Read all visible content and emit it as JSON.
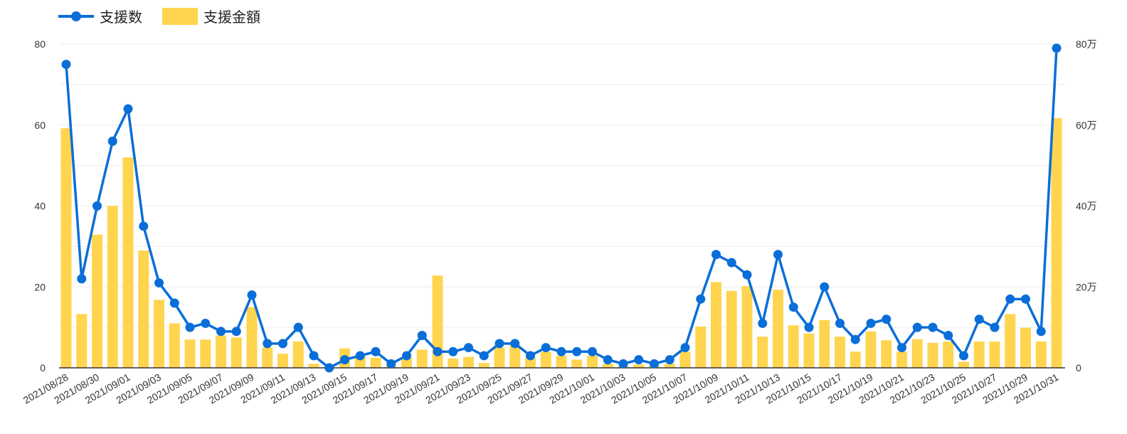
{
  "chart_data": {
    "type": "bar+line",
    "legend_position": "top-left",
    "grid": true,
    "colors": {
      "line": "#0a6ed8",
      "bar": "#ffd54f"
    },
    "x": [
      "2021/08/28",
      "2021/08/29",
      "2021/08/30",
      "2021/08/31",
      "2021/09/01",
      "2021/09/02",
      "2021/09/03",
      "2021/09/04",
      "2021/09/05",
      "2021/09/06",
      "2021/09/07",
      "2021/09/08",
      "2021/09/09",
      "2021/09/10",
      "2021/09/11",
      "2021/09/12",
      "2021/09/13",
      "2021/09/14",
      "2021/09/15",
      "2021/09/16",
      "2021/09/17",
      "2021/09/18",
      "2021/09/19",
      "2021/09/20",
      "2021/09/21",
      "2021/09/22",
      "2021/09/23",
      "2021/09/24",
      "2021/09/25",
      "2021/09/26",
      "2021/09/27",
      "2021/09/28",
      "2021/09/29",
      "2021/09/30",
      "2021/10/01",
      "2021/10/02",
      "2021/10/03",
      "2021/10/04",
      "2021/10/05",
      "2021/10/06",
      "2021/10/07",
      "2021/10/08",
      "2021/10/09",
      "2021/10/10",
      "2021/10/11",
      "2021/10/12",
      "2021/10/13",
      "2021/10/14",
      "2021/10/15",
      "2021/10/16",
      "2021/10/17",
      "2021/10/18",
      "2021/10/19",
      "2021/10/20",
      "2021/10/21",
      "2021/10/22",
      "2021/10/23",
      "2021/10/24",
      "2021/10/25",
      "2021/10/26",
      "2021/10/27",
      "2021/10/28",
      "2021/10/29",
      "2021/10/30",
      "2021/10/31"
    ],
    "x_tick_labels": [
      "2021/08/28",
      "2021/08/30",
      "2021/09/01",
      "2021/09/03",
      "2021/09/05",
      "2021/09/07",
      "2021/09/09",
      "2021/09/11",
      "2021/09/13",
      "2021/09/15",
      "2021/09/17",
      "2021/09/19",
      "2021/09/21",
      "2021/09/23",
      "2021/09/25",
      "2021/09/27",
      "2021/09/29",
      "2021/10/01",
      "2021/10/03",
      "2021/10/05",
      "2021/10/07",
      "2021/10/09",
      "2021/10/11",
      "2021/10/13",
      "2021/10/15",
      "2021/10/17",
      "2021/10/19",
      "2021/10/21",
      "2021/10/23",
      "2021/10/25",
      "2021/10/27",
      "2021/10/29",
      "2021/10/31"
    ],
    "series": [
      {
        "name": "支援数",
        "type": "line",
        "axis": "left",
        "values": [
          75,
          22,
          40,
          56,
          64,
          35,
          21,
          16,
          10,
          11,
          9,
          9,
          18,
          6,
          6,
          10,
          3,
          0,
          2,
          3,
          4,
          1,
          3,
          8,
          4,
          4,
          5,
          3,
          6,
          6,
          3,
          5,
          4,
          4,
          4,
          2,
          1,
          2,
          1,
          2,
          5,
          17,
          28,
          26,
          23,
          11,
          28,
          15,
          10,
          20,
          11,
          7,
          11,
          12,
          5,
          10,
          10,
          8,
          3,
          12,
          10,
          17,
          17,
          9,
          79
        ]
      },
      {
        "name": "支援金額",
        "type": "bar",
        "axis": "right",
        "unit": "万",
        "values": [
          59.2,
          13.3,
          32.9,
          40,
          52,
          29,
          16.8,
          11,
          7,
          7,
          8,
          7.5,
          15,
          5,
          3.5,
          6.5,
          1,
          0.3,
          4.8,
          3,
          2.5,
          0.5,
          2.5,
          4.5,
          22.8,
          2.3,
          2.7,
          1.2,
          5,
          5.5,
          2.5,
          4,
          3,
          2,
          3,
          1,
          0.5,
          0.8,
          0.5,
          1,
          4,
          10.2,
          21.2,
          19,
          20.2,
          7.7,
          19.3,
          10.5,
          8.5,
          11.8,
          7.7,
          4,
          9,
          6.8,
          4,
          7.1,
          6.2,
          6.5,
          1.5,
          6.5,
          6.5,
          13.3,
          9.9,
          6.5,
          61.7
        ]
      }
    ],
    "ylim_left": [
      0,
      80
    ],
    "ylim_right": [
      0,
      80
    ],
    "y_left_ticks": [
      "0",
      "20",
      "40",
      "60",
      "80"
    ],
    "y_right_ticks": [
      "0",
      "20万",
      "40万",
      "60万",
      "80万"
    ]
  }
}
